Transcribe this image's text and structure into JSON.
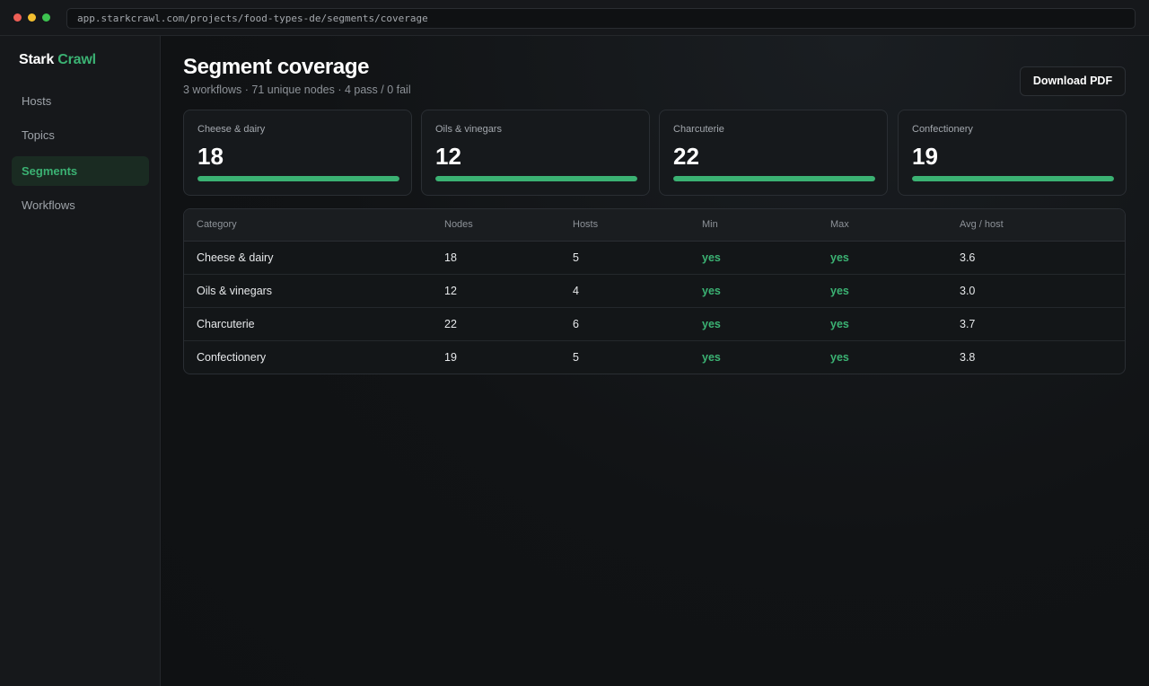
{
  "browser": {
    "url": "app.starkcrawl.com/projects/food-types-de/segments/coverage"
  },
  "brand": {
    "name": "Stark",
    "accent": "Crawl",
    "accent_color": "#3bb273"
  },
  "sidebar": {
    "items": [
      {
        "label": "Hosts",
        "active": false
      },
      {
        "label": "Topics",
        "active": false
      },
      {
        "label": "Segments",
        "active": true
      },
      {
        "label": "Workflows",
        "active": false
      }
    ]
  },
  "header": {
    "title": "Segment coverage",
    "subtitle": "3 workflows · 71 unique nodes · 4 pass / 0 fail",
    "download_label": "Download PDF"
  },
  "cards": [
    {
      "label": "Cheese & dairy",
      "value": "18",
      "progress": 1.0
    },
    {
      "label": "Oils & vinegars",
      "value": "12",
      "progress": 1.0
    },
    {
      "label": "Charcuterie",
      "value": "22",
      "progress": 1.0
    },
    {
      "label": "Confectionery",
      "value": "19",
      "progress": 1.0
    }
  ],
  "table": {
    "columns": [
      "Category",
      "Nodes",
      "Hosts",
      "Min",
      "Max",
      "Avg / host"
    ],
    "rows": [
      [
        "Cheese & dairy",
        "18",
        "5",
        "yes",
        "yes",
        "3.6"
      ],
      [
        "Oils & vinegars",
        "12",
        "4",
        "yes",
        "yes",
        "3.0"
      ],
      [
        "Charcuterie",
        "22",
        "6",
        "yes",
        "yes",
        "3.7"
      ],
      [
        "Confectionery",
        "19",
        "5",
        "yes",
        "yes",
        "3.8"
      ]
    ]
  }
}
